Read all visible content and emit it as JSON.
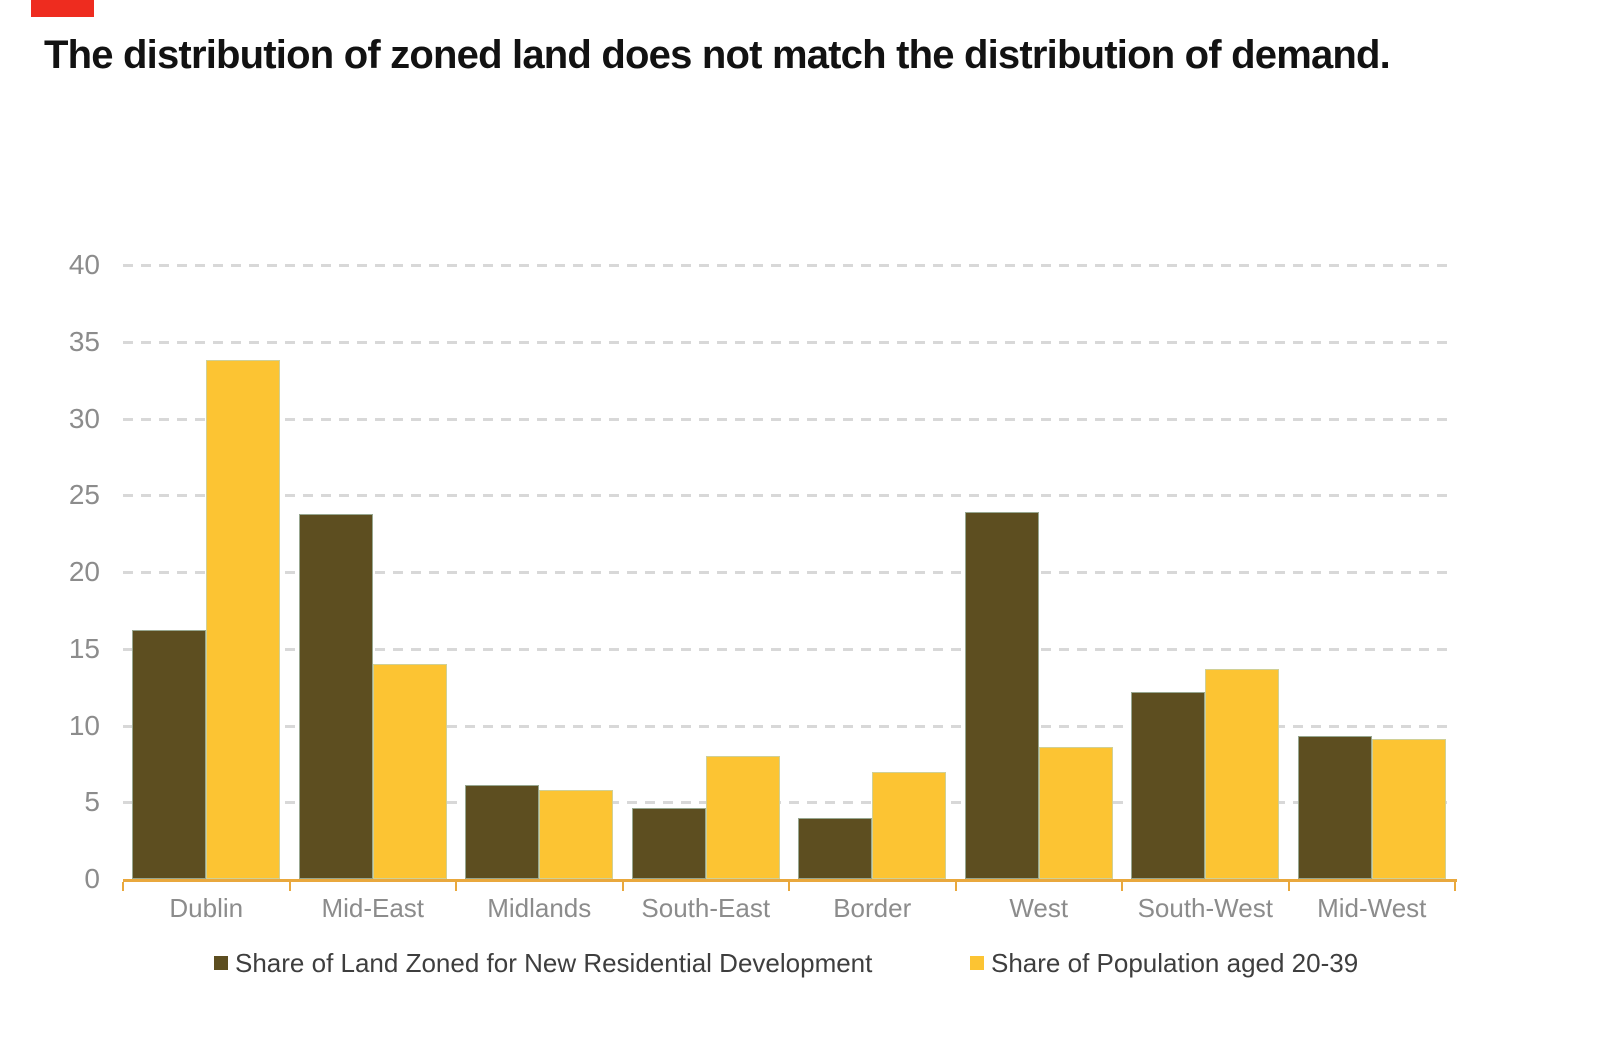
{
  "marker": {
    "color": "#ee2c1f"
  },
  "title": "The distribution of zoned land does not match the distribution of demand.",
  "chart_data": {
    "type": "bar",
    "categories": [
      "Dublin",
      "Mid-East",
      "Midlands",
      "South-East",
      "Border",
      "West",
      "South-West",
      "Mid-West"
    ],
    "series": [
      {
        "name": "Share of Land Zoned for New Residential Development",
        "color": "#5d4e20",
        "values": [
          16.2,
          23.8,
          6.1,
          4.6,
          4.0,
          23.9,
          12.2,
          9.3
        ]
      },
      {
        "name": "Share of Population aged 20-39",
        "color": "#fcc433",
        "values": [
          33.8,
          14.0,
          5.8,
          8.0,
          7.0,
          8.6,
          13.7,
          9.1
        ]
      }
    ],
    "ylim": [
      0,
      40
    ],
    "yticks": [
      0,
      5,
      10,
      15,
      20,
      25,
      30,
      35,
      40
    ],
    "grid": "horizontal-dashed",
    "legend_position": "bottom",
    "axis_line_color": "#e9a83d",
    "gridline_color": "#d8d8d8",
    "tick_label_color": "#8c8c8c"
  }
}
